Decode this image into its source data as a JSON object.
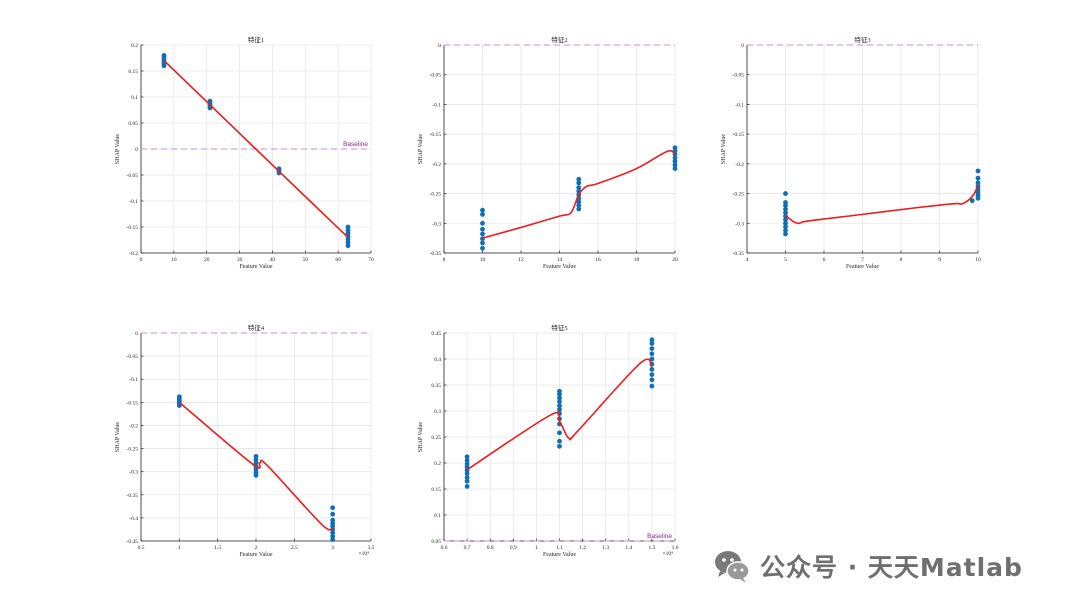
{
  "chart_data": [
    {
      "type": "scatter",
      "title": "特征1",
      "xlabel": "Feature Value",
      "ylabel": "SHAP Value",
      "xlim": [
        0,
        70
      ],
      "ylim": [
        -0.2,
        0.2
      ],
      "xticks": [
        0,
        10,
        20,
        30,
        40,
        50,
        60,
        70
      ],
      "yticks": [
        -0.2,
        -0.15,
        -0.1,
        -0.05,
        0,
        0.05,
        0.1,
        0.15,
        0.2
      ],
      "xtick_labels": [
        "0",
        "10",
        "20",
        "30",
        "40",
        "50",
        "60",
        "70"
      ],
      "ytick_labels": [
        "-0.2",
        "-0.15",
        "-0.1",
        "-0.05",
        "0",
        "0.05",
        "0.1",
        "0.15",
        "0.2"
      ],
      "xexp": "",
      "baseline_value": 0,
      "baseline_label": "Baseline",
      "points": [
        [
          7,
          0.18
        ],
        [
          7,
          0.176
        ],
        [
          7,
          0.172
        ],
        [
          7,
          0.168
        ],
        [
          7,
          0.164
        ],
        [
          7,
          0.16
        ],
        [
          21,
          0.092
        ],
        [
          21,
          0.088
        ],
        [
          21,
          0.085
        ],
        [
          21,
          0.082
        ],
        [
          21,
          0.079
        ],
        [
          42,
          -0.038
        ],
        [
          42,
          -0.042
        ],
        [
          42,
          -0.046
        ],
        [
          63,
          -0.15
        ],
        [
          63,
          -0.156
        ],
        [
          63,
          -0.162
        ],
        [
          63,
          -0.168
        ],
        [
          63,
          -0.174
        ],
        [
          63,
          -0.18
        ],
        [
          63,
          -0.186
        ]
      ],
      "trend": [
        [
          7,
          0.17
        ],
        [
          21,
          0.085
        ],
        [
          42,
          -0.043
        ],
        [
          63,
          -0.17
        ]
      ]
    },
    {
      "type": "scatter",
      "title": "特征2",
      "xlabel": "Feature Value",
      "ylabel": "SHAP Value",
      "xlim": [
        8,
        20
      ],
      "ylim": [
        -0.35,
        0
      ],
      "xticks": [
        8,
        10,
        12,
        14,
        16,
        18,
        20
      ],
      "yticks": [
        -0.35,
        -0.3,
        -0.25,
        -0.2,
        -0.15,
        -0.1,
        -0.05,
        0
      ],
      "xtick_labels": [
        "8",
        "10",
        "12",
        "14",
        "16",
        "18",
        "20"
      ],
      "ytick_labels": [
        "-0.35",
        "-0.3",
        "-0.25",
        "-0.2",
        "-0.15",
        "-0.1",
        "-0.05",
        "0"
      ],
      "xexp": "",
      "baseline_value": 0,
      "baseline_label": "",
      "points": [
        [
          10,
          -0.278
        ],
        [
          10,
          -0.285
        ],
        [
          10,
          -0.3
        ],
        [
          10,
          -0.31
        ],
        [
          10,
          -0.318
        ],
        [
          10,
          -0.326
        ],
        [
          10,
          -0.333
        ],
        [
          10,
          -0.342
        ],
        [
          15,
          -0.226
        ],
        [
          15,
          -0.232
        ],
        [
          15,
          -0.24
        ],
        [
          15,
          -0.246
        ],
        [
          15,
          -0.252
        ],
        [
          15,
          -0.258
        ],
        [
          15,
          -0.264
        ],
        [
          15,
          -0.27
        ],
        [
          15,
          -0.276
        ],
        [
          20,
          -0.173
        ],
        [
          20,
          -0.178
        ],
        [
          20,
          -0.184
        ],
        [
          20,
          -0.19
        ],
        [
          20,
          -0.196
        ],
        [
          20,
          -0.202
        ],
        [
          20,
          -0.208
        ]
      ],
      "trend": [
        [
          10,
          -0.325
        ],
        [
          12,
          -0.307
        ],
        [
          14,
          -0.288
        ],
        [
          14.6,
          -0.282
        ],
        [
          15,
          -0.252
        ],
        [
          15.4,
          -0.238
        ],
        [
          16,
          -0.233
        ],
        [
          18,
          -0.208
        ],
        [
          19.6,
          -0.179
        ],
        [
          20,
          -0.185
        ]
      ]
    },
    {
      "type": "scatter",
      "title": "特征3",
      "xlabel": "Feature Value",
      "ylabel": "SHAP Value",
      "xlim": [
        4,
        10
      ],
      "ylim": [
        -0.35,
        0
      ],
      "xticks": [
        4,
        5,
        6,
        7,
        8,
        9,
        10
      ],
      "yticks": [
        -0.35,
        -0.3,
        -0.25,
        -0.2,
        -0.15,
        -0.1,
        -0.05,
        0
      ],
      "xtick_labels": [
        "4",
        "5",
        "6",
        "7",
        "8",
        "9",
        "10"
      ],
      "ytick_labels": [
        "-0.35",
        "-0.3",
        "-0.25",
        "-0.2",
        "-0.15",
        "-0.1",
        "-0.05",
        "0"
      ],
      "xexp": "",
      "baseline_value": 0,
      "baseline_label": "",
      "points": [
        [
          5,
          -0.25
        ],
        [
          5,
          -0.265
        ],
        [
          5,
          -0.27
        ],
        [
          5,
          -0.276
        ],
        [
          5,
          -0.282
        ],
        [
          5,
          -0.288
        ],
        [
          5,
          -0.294
        ],
        [
          5,
          -0.3
        ],
        [
          5,
          -0.306
        ],
        [
          5,
          -0.312
        ],
        [
          5,
          -0.318
        ],
        [
          10,
          -0.212
        ],
        [
          10,
          -0.224
        ],
        [
          10,
          -0.232
        ],
        [
          10,
          -0.238
        ],
        [
          10,
          -0.243
        ],
        [
          10,
          -0.248
        ],
        [
          10,
          -0.253
        ],
        [
          10,
          -0.258
        ],
        [
          9.85,
          -0.262
        ]
      ],
      "trend": [
        [
          5,
          -0.287
        ],
        [
          5.2,
          -0.297
        ],
        [
          5.35,
          -0.3
        ],
        [
          5.6,
          -0.296
        ],
        [
          7,
          -0.285
        ],
        [
          8.5,
          -0.273
        ],
        [
          9.4,
          -0.267
        ],
        [
          9.6,
          -0.267
        ],
        [
          9.85,
          -0.255
        ],
        [
          10,
          -0.237
        ]
      ]
    },
    {
      "type": "scatter",
      "title": "特征4",
      "xlabel": "Feature Value",
      "ylabel": "SHAP Value",
      "xlim": [
        0.5,
        3.5
      ],
      "ylim": [
        -0.45,
        0
      ],
      "xticks": [
        0.5,
        1,
        1.5,
        2,
        2.5,
        3,
        3.5
      ],
      "yticks": [
        -0.45,
        -0.4,
        -0.35,
        -0.3,
        -0.25,
        -0.2,
        -0.15,
        -0.1,
        -0.05,
        0
      ],
      "xtick_labels": [
        "0.5",
        "1",
        "1.5",
        "2",
        "2.5",
        "3",
        "3.5"
      ],
      "ytick_labels": [
        "-0.45",
        "-0.4",
        "-0.35",
        "-0.3",
        "-0.25",
        "-0.2",
        "-0.15",
        "-0.1",
        "-0.05",
        "0"
      ],
      "xexp": "×10⁴",
      "baseline_value": 0,
      "baseline_label": "",
      "points": [
        [
          1,
          -0.138
        ],
        [
          1,
          -0.142
        ],
        [
          1,
          -0.146
        ],
        [
          1,
          -0.15
        ],
        [
          1,
          -0.154
        ],
        [
          1,
          -0.157
        ],
        [
          2,
          -0.267
        ],
        [
          2,
          -0.274
        ],
        [
          2,
          -0.281
        ],
        [
          2,
          -0.288
        ],
        [
          2,
          -0.295
        ],
        [
          2,
          -0.302
        ],
        [
          2,
          -0.308
        ],
        [
          3,
          -0.378
        ],
        [
          3,
          -0.392
        ],
        [
          3,
          -0.405
        ],
        [
          3,
          -0.412
        ],
        [
          3,
          -0.418
        ],
        [
          3,
          -0.425
        ],
        [
          3,
          -0.432
        ],
        [
          3,
          -0.44
        ],
        [
          3,
          -0.447
        ]
      ],
      "trend": [
        [
          1,
          -0.15
        ],
        [
          1.95,
          -0.283
        ],
        [
          2.05,
          -0.281
        ],
        [
          2.15,
          -0.287
        ],
        [
          2.85,
          -0.413
        ],
        [
          3,
          -0.423
        ]
      ]
    },
    {
      "type": "scatter",
      "title": "特征5",
      "xlabel": "Feature Value",
      "ylabel": "SHAP Value",
      "xlim": [
        0.6,
        1.6
      ],
      "ylim": [
        0.05,
        0.45
      ],
      "xticks": [
        0.6,
        0.7,
        0.8,
        0.9,
        1,
        1.1,
        1.2,
        1.3,
        1.4,
        1.5,
        1.6
      ],
      "yticks": [
        0.05,
        0.1,
        0.15,
        0.2,
        0.25,
        0.3,
        0.35,
        0.4,
        0.45
      ],
      "xtick_labels": [
        "0.6",
        "0.7",
        "0.8",
        "0.9",
        "1",
        "1.1",
        "1.2",
        "1.3",
        "1.4",
        "1.5",
        "1.6"
      ],
      "ytick_labels": [
        "0.05",
        "0.1",
        "0.15",
        "0.2",
        "0.25",
        "0.3",
        "0.35",
        "0.4",
        "0.45"
      ],
      "xexp": "×10⁴",
      "baseline_value": 0.05,
      "baseline_label": "Baseline",
      "points": [
        [
          0.7,
          0.155
        ],
        [
          0.7,
          0.165
        ],
        [
          0.7,
          0.172
        ],
        [
          0.7,
          0.18
        ],
        [
          0.7,
          0.186
        ],
        [
          0.7,
          0.192
        ],
        [
          0.7,
          0.198
        ],
        [
          0.7,
          0.205
        ],
        [
          0.7,
          0.212
        ],
        [
          1.1,
          0.232
        ],
        [
          1.1,
          0.242
        ],
        [
          1.1,
          0.258
        ],
        [
          1.1,
          0.275
        ],
        [
          1.1,
          0.285
        ],
        [
          1.1,
          0.295
        ],
        [
          1.1,
          0.303
        ],
        [
          1.1,
          0.31
        ],
        [
          1.1,
          0.318
        ],
        [
          1.1,
          0.325
        ],
        [
          1.1,
          0.332
        ],
        [
          1.1,
          0.338
        ],
        [
          1.5,
          0.348
        ],
        [
          1.5,
          0.36
        ],
        [
          1.5,
          0.37
        ],
        [
          1.5,
          0.38
        ],
        [
          1.5,
          0.39
        ],
        [
          1.5,
          0.4
        ],
        [
          1.5,
          0.41
        ],
        [
          1.5,
          0.42
        ],
        [
          1.5,
          0.43
        ],
        [
          1.5,
          0.437
        ]
      ],
      "trend": [
        [
          0.7,
          0.187
        ],
        [
          1.06,
          0.292
        ],
        [
          1.1,
          0.28
        ],
        [
          1.14,
          0.248
        ],
        [
          1.18,
          0.262
        ],
        [
          1.45,
          0.392
        ],
        [
          1.5,
          0.385
        ]
      ]
    }
  ],
  "watermark": {
    "text": "公众号 · 天天Matlab",
    "logo": "wechat-logo-icon"
  },
  "colors": {
    "points": "#0f6fb4",
    "trend": "#ee1c1c",
    "baseline": "#c98fc9",
    "baseline_label": "#8e1f8e",
    "grid": "#e6e6e6",
    "axis": "#262626",
    "watermark": "#6f6f6f"
  }
}
